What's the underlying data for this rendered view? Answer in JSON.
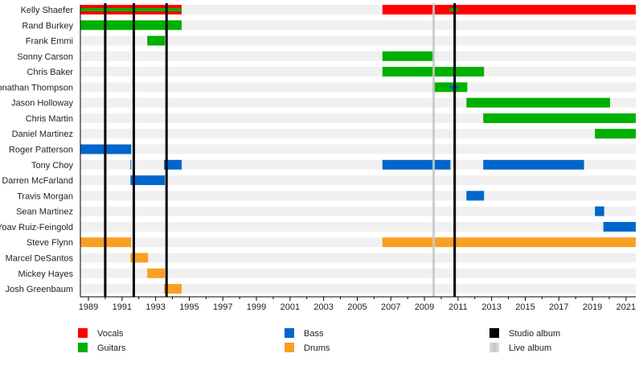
{
  "chart_data": {
    "type": "timeline",
    "xlim": [
      1988.52,
      2021.58
    ],
    "tick_labels": [
      "1989",
      "1991",
      "1993",
      "1995",
      "1997",
      "1999",
      "2001",
      "2003",
      "2005",
      "2007",
      "2009",
      "2011",
      "2013",
      "2015",
      "2017",
      "2019",
      "2021"
    ],
    "colors": {
      "Vocals": "#ff0000",
      "Guitars": "#00b000",
      "Bass": "#0066cc",
      "Drums": "#f8a024",
      "Studio album": "#000000",
      "Live album": "#c8c8c8"
    },
    "members": [
      {
        "name": "Kelly Shaefer",
        "periods": [
          {
            "role": "Vocals",
            "start": 1988.52,
            "end": 1994.55
          },
          {
            "role": "Guitars",
            "start": 1988.52,
            "end": 1994.55,
            "inner": true
          },
          {
            "role": "Vocals",
            "start": 2006.5,
            "end": 2021.58
          },
          {
            "role": "Guitars",
            "start": 2010.5,
            "end": 2011.0,
            "inner": true
          }
        ]
      },
      {
        "name": "Rand Burkey",
        "periods": [
          {
            "role": "Guitars",
            "start": 1988.52,
            "end": 1994.55
          }
        ]
      },
      {
        "name": "Frank Emmi",
        "periods": [
          {
            "role": "Guitars",
            "start": 1992.5,
            "end": 1993.55
          }
        ]
      },
      {
        "name": "Sonny Carson",
        "periods": [
          {
            "role": "Guitars",
            "start": 2006.5,
            "end": 2009.55
          }
        ]
      },
      {
        "name": "Chris Baker",
        "periods": [
          {
            "role": "Guitars",
            "start": 2006.5,
            "end": 2012.55
          }
        ]
      },
      {
        "name": "Jonathan Thompson",
        "periods": [
          {
            "role": "Guitars",
            "start": 2009.5,
            "end": 2011.55
          },
          {
            "role": "Bass",
            "start": 2010.5,
            "end": 2011.0,
            "inner": true
          }
        ]
      },
      {
        "name": "Jason Holloway",
        "periods": [
          {
            "role": "Guitars",
            "start": 2011.5,
            "end": 2020.05
          }
        ]
      },
      {
        "name": "Chris Martin",
        "periods": [
          {
            "role": "Guitars",
            "start": 2012.5,
            "end": 2021.58
          }
        ]
      },
      {
        "name": "Daniel Martinez",
        "periods": [
          {
            "role": "Guitars",
            "start": 2019.15,
            "end": 2021.58
          }
        ]
      },
      {
        "name": "Roger Patterson",
        "periods": [
          {
            "role": "Bass",
            "start": 1988.52,
            "end": 1991.55
          }
        ]
      },
      {
        "name": "Tony Choy",
        "periods": [
          {
            "role": "Bass",
            "start": 1991.5,
            "end": 1991.55
          },
          {
            "role": "Bass",
            "start": 1993.5,
            "end": 1994.55
          },
          {
            "role": "Bass",
            "start": 2006.5,
            "end": 2010.55
          },
          {
            "role": "Bass",
            "start": 2012.5,
            "end": 2018.5
          }
        ]
      },
      {
        "name": "Darren McFarland",
        "periods": [
          {
            "role": "Bass",
            "start": 1991.5,
            "end": 1993.55
          }
        ]
      },
      {
        "name": "Travis Morgan",
        "periods": [
          {
            "role": "Bass",
            "start": 2011.5,
            "end": 2012.55
          }
        ]
      },
      {
        "name": "Sean Martinez",
        "periods": [
          {
            "role": "Bass",
            "start": 2019.15,
            "end": 2019.7
          }
        ]
      },
      {
        "name": "Yoav Ruiz-Feingold",
        "periods": [
          {
            "role": "Bass",
            "start": 2019.65,
            "end": 2021.58
          }
        ]
      },
      {
        "name": "Steve Flynn",
        "periods": [
          {
            "role": "Drums",
            "start": 1988.52,
            "end": 1991.55
          },
          {
            "role": "Drums",
            "start": 2006.5,
            "end": 2021.58
          }
        ]
      },
      {
        "name": "Marcel DeSantos",
        "periods": [
          {
            "role": "Drums",
            "start": 1991.5,
            "end": 1992.55
          }
        ]
      },
      {
        "name": "Mickey Hayes",
        "periods": [
          {
            "role": "Drums",
            "start": 1992.5,
            "end": 1993.55
          }
        ]
      },
      {
        "name": "Josh Greenbaum",
        "periods": [
          {
            "role": "Drums",
            "start": 1993.5,
            "end": 1994.55
          }
        ]
      }
    ],
    "albums": [
      {
        "type": "Studio album",
        "year": 1990.0
      },
      {
        "type": "Studio album",
        "year": 1991.7
      },
      {
        "type": "Studio album",
        "year": 1993.65
      },
      {
        "type": "Live album",
        "year": 2009.55
      },
      {
        "type": "Studio album",
        "year": 2010.8
      }
    ],
    "legend": [
      "Vocals",
      "Guitars",
      "Bass",
      "Drums",
      "Studio album",
      "Live album"
    ],
    "legend_placement": "bottom"
  }
}
